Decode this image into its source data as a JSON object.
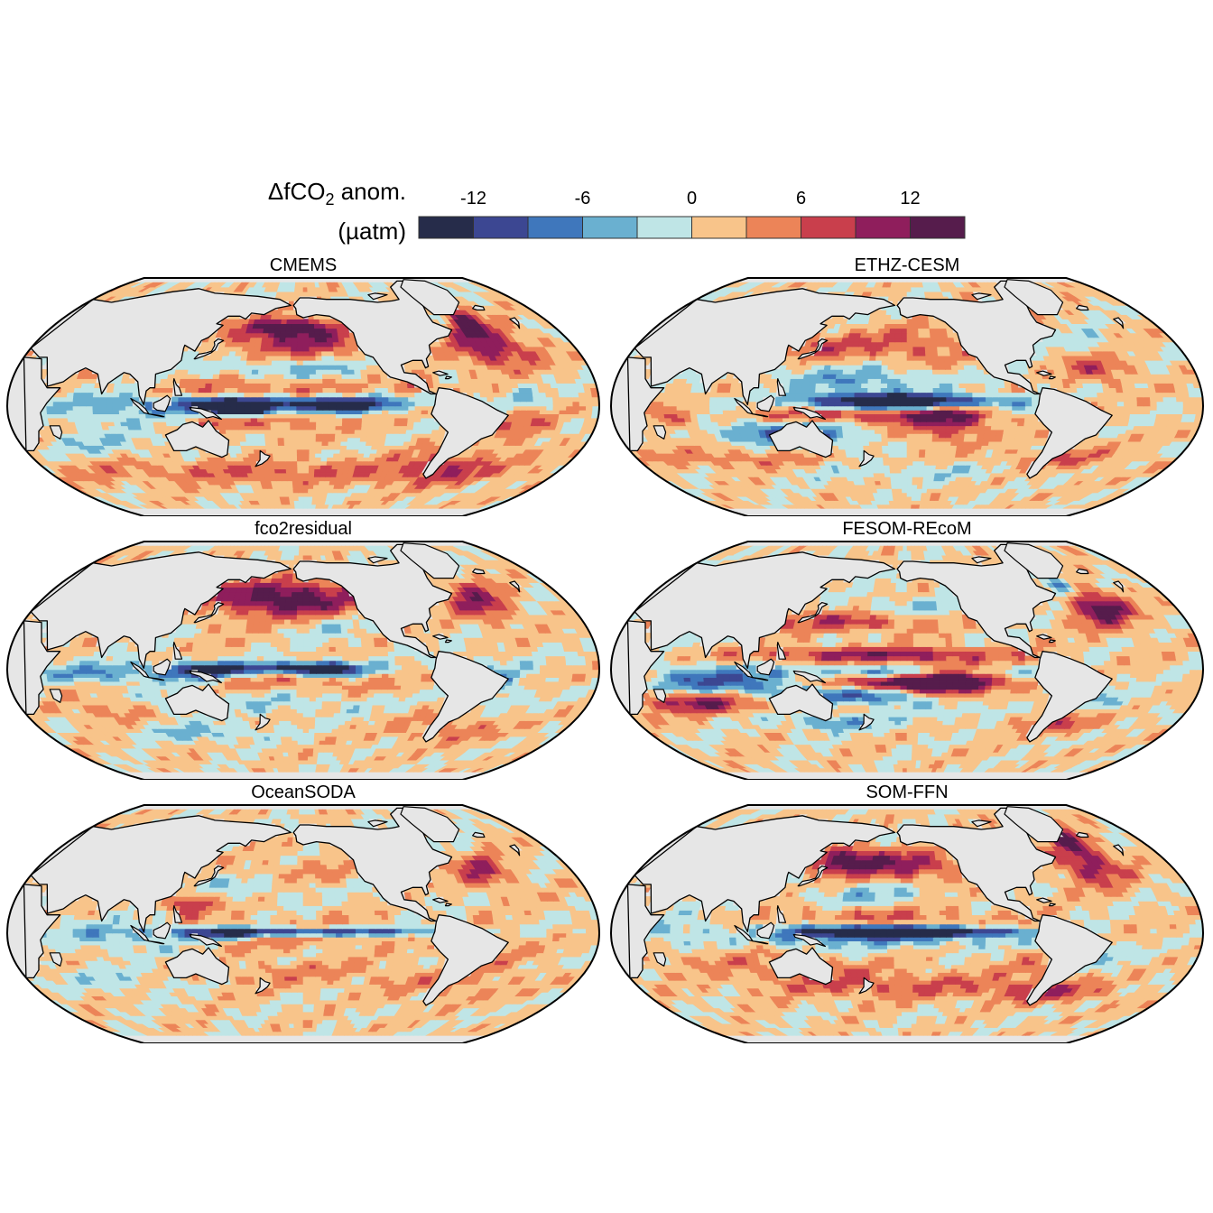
{
  "legend": {
    "title_main": "ΔfCO",
    "title_sub": "2",
    "title_suffix": " anom.",
    "unit": "(µatm)",
    "ticks": [
      -12,
      -6,
      0,
      6,
      12
    ],
    "tick_labels": [
      "-12",
      "-6",
      "0",
      "6",
      "12"
    ],
    "range": [
      -15,
      15
    ],
    "bins": [
      {
        "from": -15,
        "to": -12,
        "color": "#262c4a"
      },
      {
        "from": -12,
        "to": -9,
        "color": "#3c4792"
      },
      {
        "from": -9,
        "to": -6,
        "color": "#3f77bc"
      },
      {
        "from": -6,
        "to": -3,
        "color": "#6ab0d0"
      },
      {
        "from": -3,
        "to": 0,
        "color": "#bfe5e6"
      },
      {
        "from": 0,
        "to": 3,
        "color": "#f8c48a"
      },
      {
        "from": 3,
        "to": 6,
        "color": "#ec8458"
      },
      {
        "from": 6,
        "to": 9,
        "color": "#c93f4c"
      },
      {
        "from": 9,
        "to": 12,
        "color": "#8f1e5c"
      },
      {
        "from": 12,
        "to": 15,
        "color": "#561c4c"
      }
    ]
  },
  "colors": {
    "land": "#e6e6e6",
    "coast": "#000000"
  },
  "panels": [
    {
      "id": "cmems",
      "title": "CMEMS"
    },
    {
      "id": "ethz-cesm",
      "title": "ETHZ-CESM"
    },
    {
      "id": "fco2residual",
      "title": "fco2residual"
    },
    {
      "id": "fesom-recom",
      "title": "FESOM-REcoM"
    },
    {
      "id": "oceansoda",
      "title": "OceanSODA"
    },
    {
      "id": "som-ffn",
      "title": "SOM-FFN"
    }
  ]
}
